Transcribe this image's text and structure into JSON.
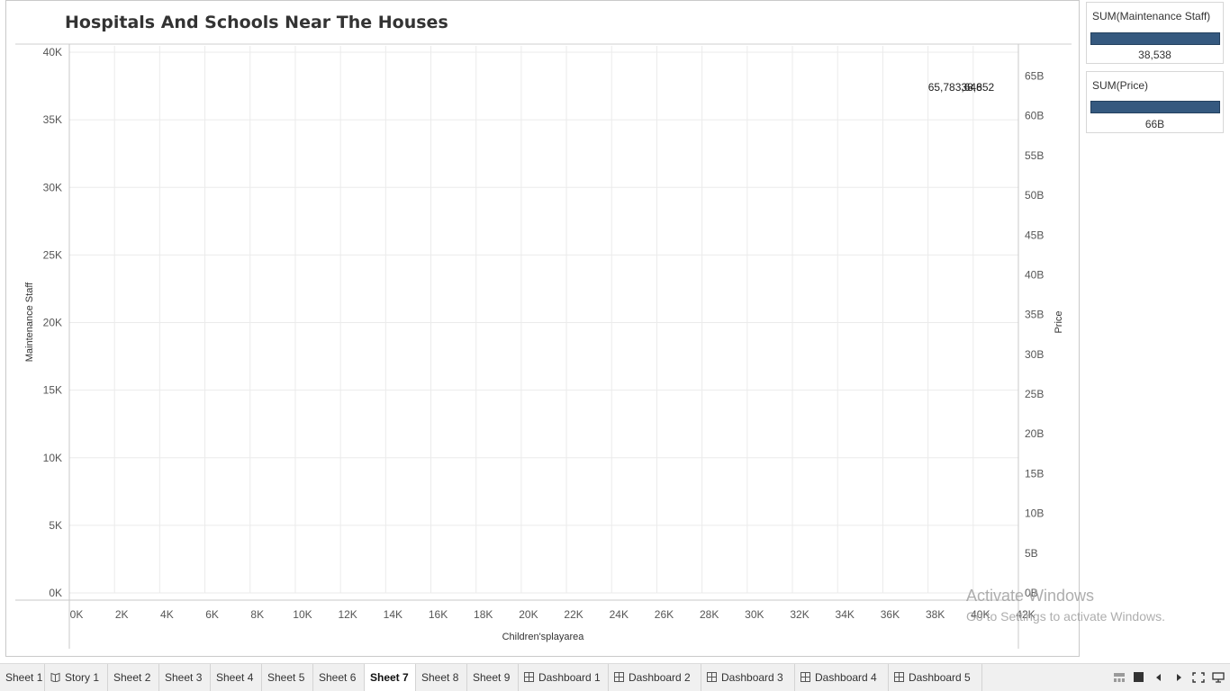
{
  "worksheet": {
    "title": "Hospitals And Schools Near The Houses"
  },
  "chart_data": {
    "type": "scatter",
    "xlabel": "Children'splayarea",
    "ylabel": "Maintenance Staff",
    "y2label": "Price",
    "xlim": [
      0,
      42000
    ],
    "ylim": [
      0,
      40000
    ],
    "y2lim": [
      0,
      68000000000
    ],
    "x_ticks": [
      "0K",
      "2K",
      "4K",
      "6K",
      "8K",
      "10K",
      "12K",
      "14K",
      "16K",
      "18K",
      "20K",
      "22K",
      "24K",
      "26K",
      "28K",
      "30K",
      "32K",
      "34K",
      "36K",
      "38K",
      "40K",
      "42K"
    ],
    "y_ticks": [
      "0K",
      "5K",
      "10K",
      "15K",
      "20K",
      "25K",
      "30K",
      "35K",
      "40K"
    ],
    "y2_ticks": [
      "0B",
      "5B",
      "10B",
      "15B",
      "20B",
      "25B",
      "30B",
      "35B",
      "40B",
      "45B",
      "50B",
      "55B",
      "60B",
      "65B"
    ],
    "grid": true,
    "data_labels": [
      {
        "text": "65,783,648",
        "x": 39200,
        "y": 38538
      },
      {
        "text": "38,652",
        "x": 40200,
        "y": 38538
      }
    ]
  },
  "legends": [
    {
      "title": "SUM(Maintenance Staff)",
      "value": "38,538",
      "bar_fraction": 1.0
    },
    {
      "title": "SUM(Price)",
      "value": "66B",
      "bar_fraction": 1.0
    }
  ],
  "watermark": {
    "line1": "Activate Windows",
    "line2": "Go to Settings to activate Windows."
  },
  "tabs": [
    {
      "label": "Sheet 1",
      "icon": "none"
    },
    {
      "label": "Story 1",
      "icon": "book-icon"
    },
    {
      "label": "Sheet 2",
      "icon": "none"
    },
    {
      "label": "Sheet 3",
      "icon": "none"
    },
    {
      "label": "Sheet 4",
      "icon": "none"
    },
    {
      "label": "Sheet 5",
      "icon": "none"
    },
    {
      "label": "Sheet 6",
      "icon": "none"
    },
    {
      "label": "Sheet 7",
      "icon": "none",
      "active": true
    },
    {
      "label": "Sheet 8",
      "icon": "none"
    },
    {
      "label": "Sheet 9",
      "icon": "none"
    },
    {
      "label": "Dashboard 1",
      "icon": "grid-icon"
    },
    {
      "label": "Dashboard 2",
      "icon": "grid-icon"
    },
    {
      "label": "Dashboard 3",
      "icon": "grid-icon"
    },
    {
      "label": "Dashboard 4",
      "icon": "grid-icon"
    },
    {
      "label": "Dashboard 5",
      "icon": "grid-icon"
    }
  ],
  "colors": {
    "accent": "#35597f",
    "grid": "#ebebeb",
    "axis": "#c8c8c8",
    "text": "#333333"
  }
}
